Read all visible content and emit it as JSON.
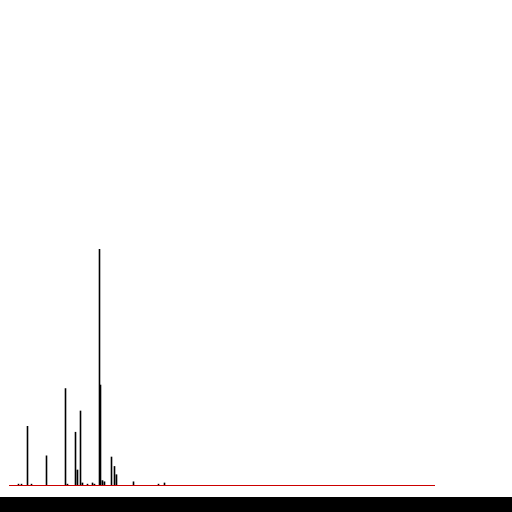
{
  "chart_data": {
    "type": "bar",
    "title": "",
    "xlabel": "",
    "ylabel": "",
    "grid": false,
    "legend": "none",
    "axis_color": "#cc0000",
    "bar_color": "#000000",
    "xlim": [
      0,
      425
    ],
    "ylim": [
      0,
      100
    ],
    "x": [
      9,
      12,
      18,
      22,
      37,
      56,
      58,
      66,
      68,
      71,
      73,
      78,
      83,
      85,
      90,
      91,
      93,
      95,
      102,
      105,
      107,
      124,
      149,
      155
    ],
    "values": [
      0.5,
      0.5,
      25,
      0.5,
      12.5,
      41,
      0.5,
      22.5,
      6.5,
      31.5,
      1,
      0.5,
      1,
      0.5,
      100,
      42.5,
      2,
      1.5,
      12,
      8,
      4.5,
      1.5,
      0.5,
      1
    ]
  }
}
